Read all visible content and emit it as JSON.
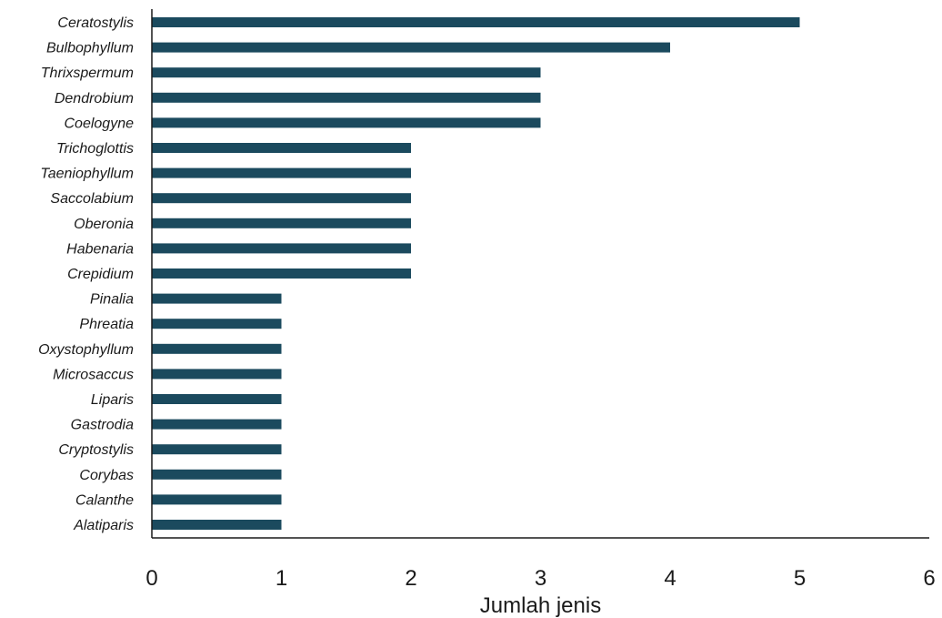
{
  "chart_data": {
    "type": "bar",
    "orientation": "horizontal",
    "categories": [
      "Ceratostylis",
      "Bulbophyllum",
      "Thrixspermum",
      "Dendrobium",
      "Coelogyne",
      "Trichoglottis",
      "Taeniophyllum",
      "Saccolabium",
      "Oberonia",
      "Habenaria",
      "Crepidium",
      "Pinalia",
      "Phreatia",
      "Oxystophyllum",
      "Microsaccus",
      "Liparis",
      "Gastrodia",
      "Cryptostylis",
      "Corybas",
      "Calanthe",
      "Alatiparis"
    ],
    "values": [
      5,
      4,
      3,
      3,
      3,
      2,
      2,
      2,
      2,
      2,
      2,
      1,
      1,
      1,
      1,
      1,
      1,
      1,
      1,
      1,
      1
    ],
    "title": "",
    "xlabel": "Jumlah jenis",
    "ylabel": "",
    "xlim": [
      0,
      6
    ],
    "xticks": [
      "0",
      "1",
      "2",
      "3",
      "4",
      "5",
      "6"
    ],
    "grid": false,
    "bar_color": "#1b4a5e",
    "axis_color": "#1a1a1a"
  }
}
